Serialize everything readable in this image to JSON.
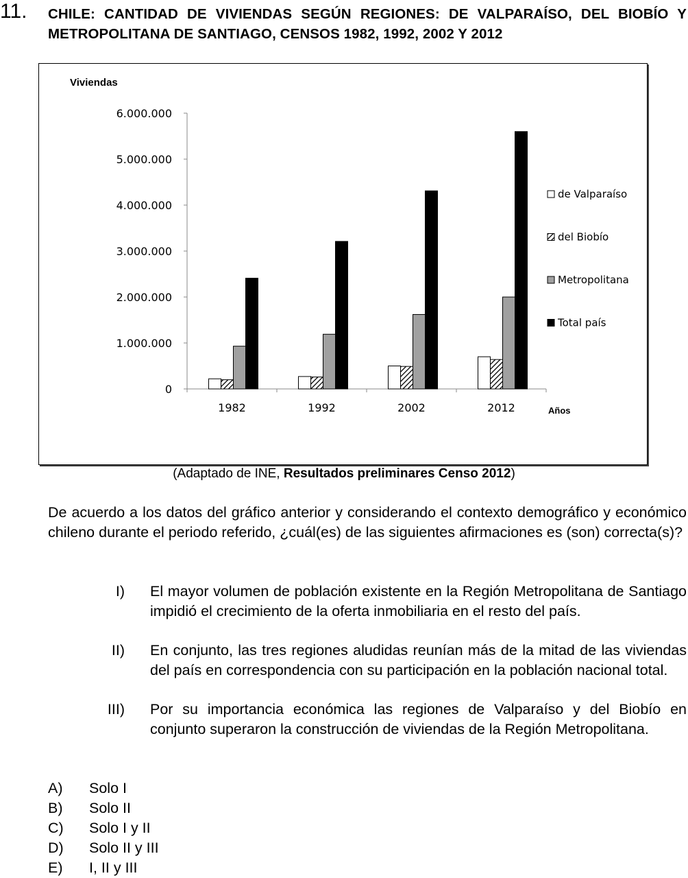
{
  "question_number": "11.",
  "title": "CHILE: CANTIDAD DE VIVIENDAS SEGÚN REGIONES: DE VALPARAÍSO, DEL BIOBÍO Y METROPOLITANA DE SANTIAGO, CENSOS 1982, 1992, 2002 Y 2012",
  "source": {
    "prefix": "(Adaptado de INE, ",
    "bold": "Resultados preliminares Censo 2012",
    "suffix": ")"
  },
  "chart_data": {
    "type": "bar",
    "ylabel": "Viviendas",
    "xlabel": "Años",
    "categories": [
      "1982",
      "1992",
      "2002",
      "2012"
    ],
    "ylim": [
      0,
      6000000
    ],
    "yticks": [
      "0",
      "1.000.000",
      "2.000.000",
      "3.000.000",
      "4.000.000",
      "5.000.000",
      "6.000.000"
    ],
    "legend_position": "right",
    "series": [
      {
        "name": "de Valparaíso",
        "values": [
          220000,
          270000,
          500000,
          700000
        ],
        "fill": "white"
      },
      {
        "name": "del Biobío",
        "values": [
          200000,
          260000,
          490000,
          640000
        ],
        "fill": "hatched"
      },
      {
        "name": "Metropolitana",
        "values": [
          930000,
          1190000,
          1620000,
          2000000
        ],
        "fill": "#a0a0a0"
      },
      {
        "name": "Total país",
        "values": [
          2410000,
          3210000,
          4310000,
          5600000
        ],
        "fill": "#000000"
      }
    ]
  },
  "stem": "De acuerdo a los datos del gráfico anterior y considerando el contexto demográfico y económico chileno durante el periodo referido, ¿cuál(es) de las siguientes afirmaciones es (son) correcta(s)?",
  "statements": [
    {
      "num": "I)",
      "text": "El mayor volumen de población existente en la Región Metropolitana de Santiago impidió el crecimiento de la oferta inmobiliaria en el resto del país."
    },
    {
      "num": "II)",
      "text": "En conjunto, las tres regiones aludidas reunían más de la mitad de las viviendas del país en correspondencia con su participación en la población nacional total."
    },
    {
      "num": "III)",
      "text": "Por su importancia económica las regiones de Valparaíso y del Biobío en conjunto superaron la construcción de viviendas de la Región Metropolitana."
    }
  ],
  "options": [
    {
      "letter": "A)",
      "text": "Solo I"
    },
    {
      "letter": "B)",
      "text": "Solo II"
    },
    {
      "letter": "C)",
      "text": "Solo I y II"
    },
    {
      "letter": "D)",
      "text": "Solo II y III"
    },
    {
      "letter": "E)",
      "text": "I, II y III"
    }
  ]
}
